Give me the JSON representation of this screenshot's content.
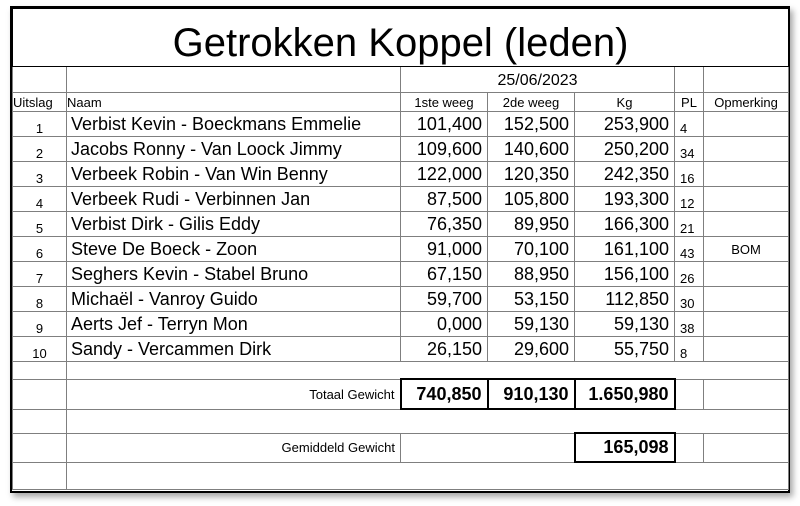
{
  "title": "Getrokken Koppel (leden)",
  "date": "25/06/2023",
  "headers": {
    "uitslag": "Uitslag",
    "naam": "Naam",
    "weeg1": "1ste weeg",
    "weeg2": "2de weeg",
    "kg": "Kg",
    "pl": "PL",
    "opmerking": "Opmerking"
  },
  "rows": [
    {
      "nr": "1",
      "naam": "Verbist Kevin - Boeckmans Emmelie",
      "w1": "101,400",
      "w2": "152,500",
      "kg": "253,900",
      "pl": "4",
      "opm": ""
    },
    {
      "nr": "2",
      "naam": "Jacobs Ronny - Van Loock Jimmy",
      "w1": "109,600",
      "w2": "140,600",
      "kg": "250,200",
      "pl": "34",
      "opm": ""
    },
    {
      "nr": "3",
      "naam": "Verbeek Robin - Van Win Benny",
      "w1": "122,000",
      "w2": "120,350",
      "kg": "242,350",
      "pl": "16",
      "opm": ""
    },
    {
      "nr": "4",
      "naam": "Verbeek Rudi - Verbinnen Jan",
      "w1": "87,500",
      "w2": "105,800",
      "kg": "193,300",
      "pl": "12",
      "opm": ""
    },
    {
      "nr": "5",
      "naam": "Verbist Dirk - Gilis Eddy",
      "w1": "76,350",
      "w2": "89,950",
      "kg": "166,300",
      "pl": "21",
      "opm": ""
    },
    {
      "nr": "6",
      "naam": "Steve De Boeck - Zoon",
      "w1": "91,000",
      "w2": "70,100",
      "kg": "161,100",
      "pl": "43",
      "opm": "BOM"
    },
    {
      "nr": "7",
      "naam": "Seghers Kevin - Stabel Bruno",
      "w1": "67,150",
      "w2": "88,950",
      "kg": "156,100",
      "pl": "26",
      "opm": ""
    },
    {
      "nr": "8",
      "naam": "Michaël - Vanroy Guido",
      "w1": "59,700",
      "w2": "53,150",
      "kg": "112,850",
      "pl": "30",
      "opm": ""
    },
    {
      "nr": "9",
      "naam": "Aerts Jef - Terryn Mon",
      "w1": "0,000",
      "w2": "59,130",
      "kg": "59,130",
      "pl": "38",
      "opm": ""
    },
    {
      "nr": "10",
      "naam": "Sandy - Vercammen Dirk",
      "w1": "26,150",
      "w2": "29,600",
      "kg": "55,750",
      "pl": "8",
      "opm": ""
    }
  ],
  "totals": {
    "label": "Totaal Gewicht",
    "w1": "740,850",
    "w2": "910,130",
    "kg": "1.650,980"
  },
  "average": {
    "label": "Gemiddeld Gewicht",
    "kg": "165,098"
  }
}
